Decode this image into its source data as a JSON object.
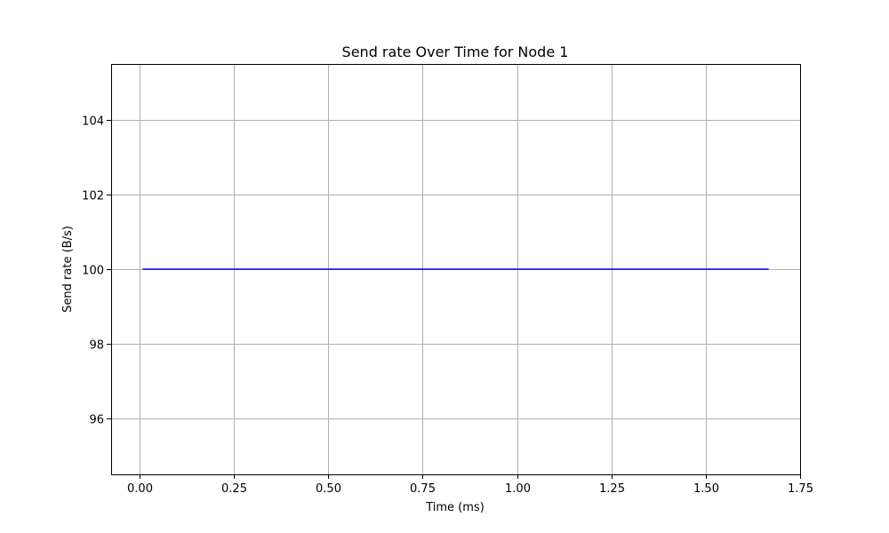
{
  "chart_data": {
    "type": "line",
    "title": "Send rate Over Time for Node 1",
    "xlabel": "Time (ms)",
    "ylabel": "Send rate (B/s)",
    "xlim": [
      -0.075,
      1.75
    ],
    "ylim": [
      94.5,
      105.5
    ],
    "xticks": [
      0.0,
      0.25,
      0.5,
      0.75,
      1.0,
      1.25,
      1.5,
      1.75
    ],
    "xtick_labels": [
      "0.00",
      "0.25",
      "0.50",
      "0.75",
      "1.00",
      "1.25",
      "1.50",
      "1.75"
    ],
    "yticks": [
      96,
      98,
      100,
      102,
      104
    ],
    "ytick_labels": [
      "96",
      "98",
      "100",
      "102",
      "104"
    ],
    "grid": true,
    "series": [
      {
        "color": "#0000ff",
        "x": [
          0.0083,
          1.6667
        ],
        "y": [
          100,
          100
        ]
      }
    ]
  }
}
